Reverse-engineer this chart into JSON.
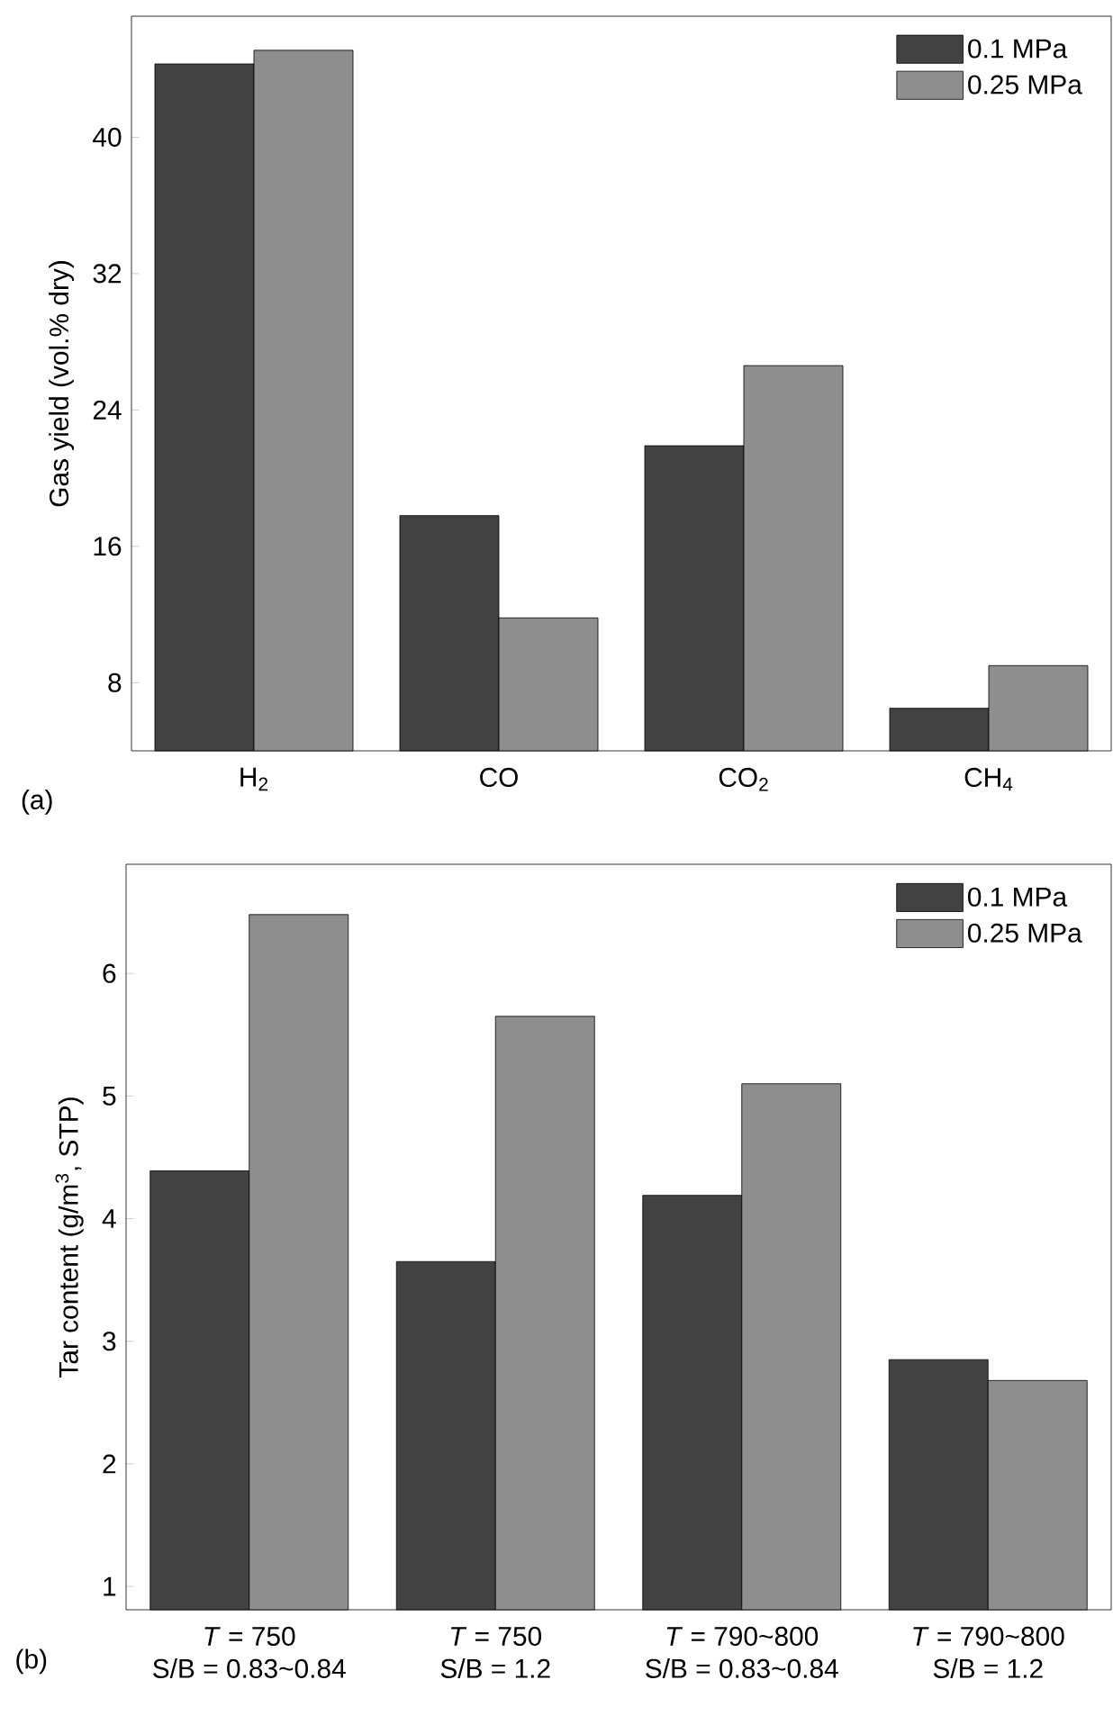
{
  "chart_data": [
    {
      "type": "bar",
      "ylabel": "Gas yield (vol.% dry)",
      "categories": [
        "H$_{2}$",
        "CO",
        "CO$_{2}$",
        "CH$_{4}$"
      ],
      "series": [
        {
          "name": "0.1 MPa",
          "color": "#424242",
          "values": [
            44.3,
            17.8,
            21.9,
            6.5
          ]
        },
        {
          "name": "0.25 MPa",
          "color": "#8e8e8e",
          "values": [
            45.1,
            11.8,
            26.6,
            9.0
          ]
        }
      ],
      "ylim": [
        4,
        47.1
      ],
      "yticks": [
        8,
        16,
        24,
        32,
        40
      ],
      "legend": "top right",
      "annotations": [
        "(a)"
      ]
    },
    {
      "type": "bar",
      "ylabel": "Tar content (g/m$^{3}$, STP)",
      "categories": [
        "*T* = 750\nS/B = 0.83~0.84",
        "*T* = 750\nS/B = 1.2",
        "*T* = 790~800\nS/B = 0.83~0.84",
        "*T* = 790~800\nS/B = 1.2"
      ],
      "series": [
        {
          "name": "0.1 MPa",
          "color": "#424242",
          "values": [
            4.39,
            3.65,
            4.19,
            2.85
          ]
        },
        {
          "name": "0.25 MPa",
          "color": "#8e8e8e",
          "values": [
            6.48,
            5.65,
            5.1,
            2.68
          ]
        }
      ],
      "ylim": [
        0.81,
        6.89
      ],
      "yticks": [
        1,
        2,
        3,
        4,
        5,
        6
      ],
      "legend": "top right",
      "annotations": [
        "(b)"
      ]
    }
  ]
}
